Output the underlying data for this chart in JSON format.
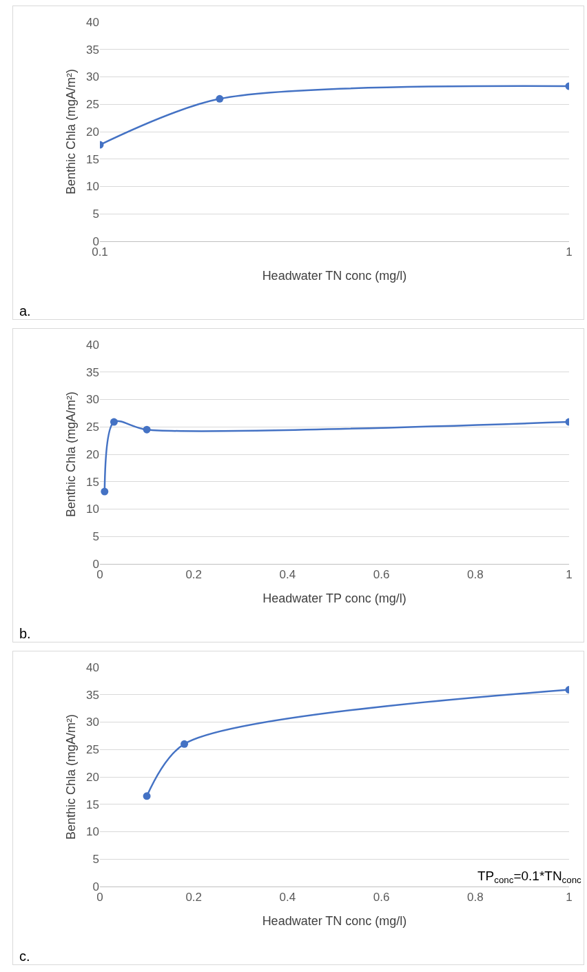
{
  "chart_data": [
    {
      "type": "line",
      "xlabel": "Headwater TN conc (mg/l)",
      "ylabel": "Benthic Chla (mgA/m²)",
      "x": [
        0.1,
        0.18,
        1
      ],
      "values": [
        17.6,
        26,
        28.3
      ],
      "color": "#4472c4",
      "log": "x",
      "xlim": [
        0.1,
        1
      ],
      "xticks": [
        0.1,
        1
      ],
      "ylim": [
        0,
        40
      ],
      "yticks": [
        0,
        5,
        10,
        15,
        20,
        25,
        30,
        35,
        40
      ],
      "grid": "y",
      "marker": "circle",
      "annotations": [
        "a."
      ]
    },
    {
      "type": "line",
      "xlabel": "Headwater TP conc (mg/l)",
      "ylabel": "Benthic Chla (mgA/m²)",
      "x": [
        0.01,
        0.03,
        0.1,
        1
      ],
      "values": [
        13.2,
        25.9,
        24.5,
        25.9
      ],
      "color": "#4472c4",
      "xlim": [
        0,
        1
      ],
      "xticks": [
        0,
        0.2,
        0.4,
        0.6,
        0.8,
        1
      ],
      "ylim": [
        0,
        40
      ],
      "yticks": [
        0,
        5,
        10,
        15,
        20,
        25,
        30,
        35,
        40
      ],
      "grid": "y",
      "marker": "circle",
      "annotations": [
        "b."
      ]
    },
    {
      "type": "line",
      "xlabel": "Headwater TN conc (mg/l)",
      "ylabel": "Benthic Chla (mgA/m²)",
      "x": [
        0.1,
        0.18,
        1
      ],
      "values": [
        16.5,
        26,
        35.9
      ],
      "color": "#4472c4",
      "xlim": [
        0,
        1
      ],
      "xticks": [
        0,
        0.2,
        0.4,
        0.6,
        0.8,
        1
      ],
      "ylim": [
        0,
        40
      ],
      "yticks": [
        0,
        5,
        10,
        15,
        20,
        25,
        30,
        35,
        40
      ],
      "grid": "y",
      "marker": "circle",
      "annotations": [
        "c.",
        "TP$_{conc}$=0.1*TN$_{conc}$"
      ]
    }
  ]
}
